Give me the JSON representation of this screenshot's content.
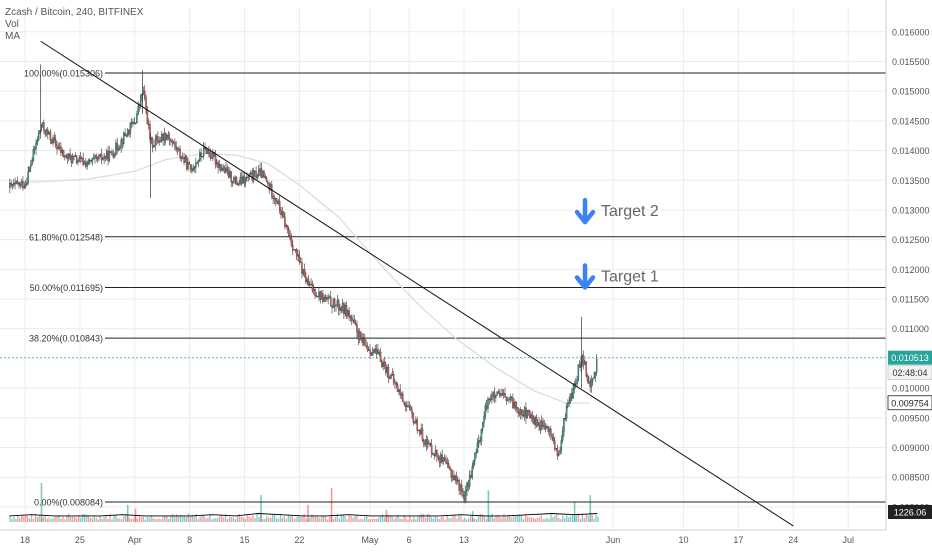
{
  "header": {
    "symbol_line": "Zcash / Bitcoin, 240, BITFINEX",
    "vol_label": "Vol",
    "ma_label": "MA"
  },
  "chart_data": {
    "type": "line",
    "title": "Zcash / Bitcoin, 240, BITFINEX",
    "colors": {
      "up": "#26a69a",
      "down": "#ef5350",
      "grid": "#ececec",
      "price_badge": "#26a69a",
      "ma": "#dcdcdc",
      "arrow": "#3b82f6",
      "target_text": "#666666"
    },
    "y_axis": {
      "ylim": [
        0.00778,
        0.0164
      ],
      "ticks": [
        "0.008000",
        "0.008500",
        "0.009000",
        "0.009500",
        "0.010000",
        "0.010500",
        "0.011000",
        "0.011500",
        "0.012000",
        "0.012500",
        "0.013000",
        "0.013500",
        "0.014000",
        "0.014500",
        "0.015000",
        "0.015500",
        "0.016000"
      ]
    },
    "x_axis": {
      "ticks": [
        "18",
        "25",
        "Apr",
        "8",
        "15",
        "22",
        "May",
        "6",
        "13",
        "20",
        "Jun",
        "10",
        "17",
        "24",
        "Jul"
      ]
    },
    "fib_levels": [
      {
        "label": "100.00%(0.015306)",
        "value": 0.015306
      },
      {
        "label": "61.80%(0.012548)",
        "value": 0.012548
      },
      {
        "label": "50.00%(0.011695)",
        "value": 0.011695
      },
      {
        "label": "38.20%(0.010843)",
        "value": 0.010843
      },
      {
        "label": "0.00%(0.008084)",
        "value": 0.008084
      }
    ],
    "targets": [
      {
        "label": "Target 2",
        "value": 0.01293
      },
      {
        "label": "Target 1",
        "value": 0.01183
      }
    ],
    "price_series": {
      "name": "ZEC/BTC",
      "x": [
        "Mar 16",
        "Mar 18",
        "Mar 20",
        "Mar 23",
        "Mar 26",
        "Mar 29",
        "Apr 1",
        "Apr 2",
        "Apr 3",
        "Apr 5",
        "Apr 8",
        "Apr 10",
        "Apr 12",
        "Apr 14",
        "Apr 17",
        "Apr 19",
        "Apr 21",
        "Apr 23",
        "Apr 25",
        "Apr 28",
        "Apr 30",
        "May 2",
        "May 4",
        "May 6",
        "May 8",
        "May 10",
        "May 12",
        "May 13",
        "May 15",
        "May 16",
        "May 18",
        "May 20",
        "May 22",
        "May 24",
        "May 25",
        "May 26",
        "May 27",
        "May 28",
        "May 29",
        "May 30"
      ],
      "values": [
        0.01338,
        0.01345,
        0.01442,
        0.0139,
        0.01378,
        0.01394,
        0.0145,
        0.01502,
        0.01411,
        0.01428,
        0.01368,
        0.01403,
        0.01371,
        0.01345,
        0.01363,
        0.01318,
        0.01243,
        0.01174,
        0.01151,
        0.0113,
        0.01075,
        0.01055,
        0.0101,
        0.0096,
        0.0091,
        0.0088,
        0.00845,
        0.00815,
        0.0092,
        0.00985,
        0.00985,
        0.00965,
        0.00945,
        0.00925,
        0.0088,
        0.0097,
        0.01,
        0.0106,
        0.01,
        0.01051
      ]
    },
    "ma_series": {
      "x": [
        "Mar 16",
        "Mar 21",
        "Mar 26",
        "Apr 1",
        "Apr 5",
        "Apr 10",
        "Apr 14",
        "Apr 18",
        "Apr 22",
        "Apr 27",
        "May 2",
        "May 7",
        "May 12",
        "May 17",
        "May 22",
        "May 26",
        "May 29"
      ],
      "values": [
        0.01345,
        0.01348,
        0.01352,
        0.01365,
        0.01385,
        0.01395,
        0.01392,
        0.01378,
        0.01342,
        0.01288,
        0.01213,
        0.01143,
        0.01083,
        0.01035,
        0.00995,
        0.00975,
        0.00975
      ]
    },
    "trendline": {
      "from": [
        "Mar 20",
        0.01584
      ],
      "to": [
        "Jun 24",
        0.00768
      ]
    },
    "current_price": {
      "label": "0.010513",
      "value": 0.010513
    },
    "countdown": "02:48:04",
    "prior_close": {
      "label": "0.009754",
      "value": 0.009754
    },
    "volume": {
      "label": "1226.06",
      "spikes": [
        {
          "x": "Mar 20",
          "value": 0.32,
          "up": true
        },
        {
          "x": "Mar 31",
          "value": 0.14,
          "up": true
        },
        {
          "x": "Apr 1",
          "value": 0.11,
          "up": false
        },
        {
          "x": "Apr 17",
          "value": 0.22,
          "up": true
        },
        {
          "x": "Apr 23",
          "value": 0.14,
          "up": false
        },
        {
          "x": "Apr 26",
          "value": 0.28,
          "up": false
        },
        {
          "x": "May 3",
          "value": 0.1,
          "up": false
        },
        {
          "x": "May 14",
          "value": 0.09,
          "up": true
        },
        {
          "x": "May 16",
          "value": 0.26,
          "up": true
        },
        {
          "x": "May 27",
          "value": 0.17,
          "up": true
        },
        {
          "x": "May 29",
          "value": 0.22,
          "up": true
        }
      ],
      "ma": [
        0.05,
        0.06,
        0.05,
        0.05,
        0.05,
        0.06,
        0.05,
        0.05,
        0.05,
        0.06,
        0.05,
        0.07,
        0.06,
        0.05,
        0.05,
        0.06,
        0.05,
        0.05,
        0.05,
        0.05,
        0.06,
        0.05,
        0.05,
        0.06,
        0.07,
        0.06,
        0.07
      ]
    }
  }
}
